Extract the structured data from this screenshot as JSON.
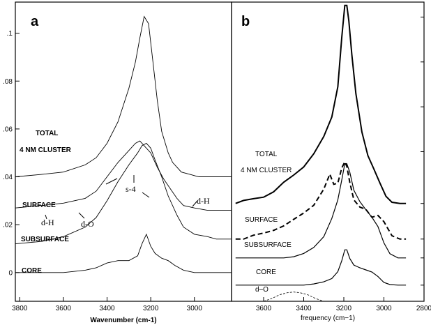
{
  "chart_data": [
    {
      "panel_label": "a",
      "type": "line",
      "xlabel": "Wavenumber (cm-1)",
      "xlim": [
        3820,
        2830
      ],
      "ylim": [
        -0.012,
        0.113
      ],
      "x_ticks": [
        "3800",
        "3600",
        "3400",
        "3200",
        "3000"
      ],
      "y_ticks": [
        "0",
        ".02",
        ".04",
        ".06",
        ".08",
        ".1"
      ],
      "x_tick_values": [
        3800,
        3600,
        3400,
        3200,
        3000
      ],
      "y_tick_values": [
        0,
        0.02,
        0.04,
        0.06,
        0.08,
        0.1
      ],
      "curve_labels": [
        "TOTAL",
        "4 NM CLUSTER",
        "SURFACE",
        "SUBSURFACE",
        "CORE"
      ],
      "annotations": [
        "s-4",
        "d-H",
        "d-O",
        "d-H"
      ],
      "series": [
        {
          "name": "TOTAL 4 NM CLUSTER",
          "x": [
            3820,
            3700,
            3600,
            3500,
            3450,
            3400,
            3350,
            3300,
            3270,
            3250,
            3230,
            3210,
            3190,
            3170,
            3150,
            3120,
            3100,
            3060,
            3020,
            2980,
            2900,
            2830
          ],
          "y": [
            0.04,
            0.041,
            0.042,
            0.045,
            0.048,
            0.054,
            0.063,
            0.077,
            0.088,
            0.098,
            0.107,
            0.104,
            0.088,
            0.072,
            0.059,
            0.05,
            0.046,
            0.042,
            0.041,
            0.04,
            0.04,
            0.04
          ]
        },
        {
          "name": "SURFACE",
          "x": [
            3820,
            3700,
            3600,
            3500,
            3450,
            3400,
            3350,
            3300,
            3270,
            3250,
            3230,
            3200,
            3170,
            3140,
            3110,
            3080,
            3050,
            3000,
            2940,
            2900,
            2830
          ],
          "y": [
            0.027,
            0.028,
            0.029,
            0.031,
            0.034,
            0.04,
            0.046,
            0.051,
            0.054,
            0.055,
            0.053,
            0.05,
            0.044,
            0.039,
            0.035,
            0.031,
            0.028,
            0.027,
            0.026,
            0.026,
            0.026
          ]
        },
        {
          "name": "SUBSURFACE",
          "x": [
            3820,
            3700,
            3600,
            3500,
            3450,
            3400,
            3350,
            3300,
            3260,
            3240,
            3220,
            3200,
            3180,
            3150,
            3120,
            3080,
            3050,
            3000,
            2940,
            2900,
            2830
          ],
          "y": [
            0.012,
            0.013,
            0.015,
            0.019,
            0.023,
            0.03,
            0.038,
            0.045,
            0.05,
            0.053,
            0.054,
            0.052,
            0.047,
            0.04,
            0.032,
            0.024,
            0.019,
            0.016,
            0.015,
            0.014,
            0.014
          ]
        },
        {
          "name": "CORE",
          "x": [
            3820,
            3600,
            3500,
            3450,
            3400,
            3350,
            3300,
            3260,
            3240,
            3220,
            3200,
            3180,
            3150,
            3120,
            3090,
            3050,
            3000,
            2900,
            2830
          ],
          "y": [
            0.0,
            0.0,
            0.001,
            0.002,
            0.004,
            0.005,
            0.005,
            0.007,
            0.012,
            0.016,
            0.011,
            0.008,
            0.006,
            0.005,
            0.003,
            0.001,
            0.0,
            0.0,
            0.0
          ]
        }
      ]
    },
    {
      "panel_label": "b",
      "type": "line",
      "xlabel": "frequency (cm−1)",
      "xlim": [
        3760,
        2800
      ],
      "ylim": [
        0,
        1
      ],
      "x_ticks": [
        "3600",
        "3400",
        "3200",
        "3000",
        "2800"
      ],
      "x_tick_values": [
        3600,
        3400,
        3200,
        3000,
        2800
      ],
      "curve_labels": [
        "TOTAL",
        "4 NM CLUSTER",
        "SURFACE",
        "SUBSURFACE",
        "CORE",
        "d–O"
      ],
      "series": [
        {
          "name": "TOTAL 4 NM CLUSTER",
          "style": "thick",
          "x": [
            3740,
            3700,
            3650,
            3600,
            3550,
            3500,
            3450,
            3400,
            3350,
            3300,
            3260,
            3230,
            3210,
            3195,
            3185,
            3175,
            3160,
            3140,
            3110,
            3080,
            3050,
            3020,
            2990,
            2960,
            2920,
            2890
          ],
          "y": [
            0.327,
            0.337,
            0.343,
            0.348,
            0.366,
            0.398,
            0.422,
            0.449,
            0.493,
            0.551,
            0.616,
            0.717,
            0.883,
            0.989,
            0.989,
            0.937,
            0.824,
            0.694,
            0.566,
            0.487,
            0.442,
            0.395,
            0.351,
            0.331,
            0.327,
            0.327
          ]
        },
        {
          "name": "SURFACE",
          "style": "dashed",
          "x": [
            3740,
            3700,
            3650,
            3600,
            3550,
            3500,
            3450,
            3400,
            3350,
            3300,
            3270,
            3250,
            3230,
            3210,
            3195,
            3185,
            3170,
            3150,
            3120,
            3090,
            3060,
            3030,
            3000,
            2960,
            2920,
            2890
          ],
          "y": [
            0.208,
            0.208,
            0.221,
            0.228,
            0.237,
            0.252,
            0.274,
            0.295,
            0.321,
            0.375,
            0.425,
            0.391,
            0.395,
            0.446,
            0.466,
            0.451,
            0.397,
            0.339,
            0.315,
            0.307,
            0.281,
            0.287,
            0.266,
            0.219,
            0.208,
            0.208
          ]
        },
        {
          "name": "SUBSURFACE",
          "style": "solid",
          "x": [
            3740,
            3600,
            3500,
            3450,
            3400,
            3350,
            3300,
            3260,
            3230,
            3210,
            3195,
            3185,
            3170,
            3150,
            3120,
            3090,
            3060,
            3030,
            3000,
            2970,
            2930,
            2890
          ],
          "y": [
            0.145,
            0.145,
            0.145,
            0.149,
            0.16,
            0.18,
            0.216,
            0.277,
            0.339,
            0.406,
            0.46,
            0.46,
            0.431,
            0.371,
            0.333,
            0.306,
            0.281,
            0.25,
            0.195,
            0.159,
            0.145,
            0.145
          ]
        },
        {
          "name": "CORE",
          "style": "solid",
          "x": [
            3740,
            3400,
            3350,
            3300,
            3260,
            3230,
            3210,
            3195,
            3185,
            3170,
            3150,
            3120,
            3090,
            3060,
            3030,
            3000,
            2970,
            2930,
            2890
          ],
          "y": [
            0.054,
            0.054,
            0.058,
            0.065,
            0.076,
            0.099,
            0.136,
            0.172,
            0.172,
            0.143,
            0.121,
            0.112,
            0.105,
            0.098,
            0.083,
            0.063,
            0.056,
            0.054,
            0.054
          ]
        },
        {
          "name": "d–O",
          "style": "thin-dashed",
          "x": [
            3600,
            3560,
            3520,
            3480,
            3450,
            3420,
            3380,
            3340,
            3300
          ],
          "y": [
            0.0,
            0.009,
            0.022,
            0.029,
            0.031,
            0.029,
            0.022,
            0.009,
            0.0
          ]
        }
      ]
    }
  ]
}
